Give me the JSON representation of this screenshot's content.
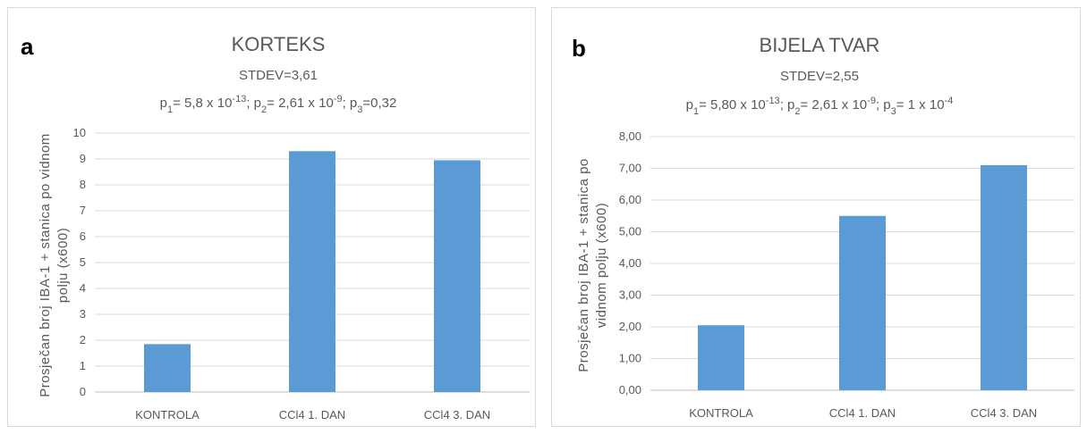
{
  "accent_color": "#5b9bd5",
  "chart_data": [
    {
      "type": "bar",
      "panel_label": "a",
      "title": "KORTEKS",
      "stdev_text": "STDEV=3,61",
      "p_values": [
        {
          "label": "p",
          "sub": "1",
          "eq": "= 5,8 x 10",
          "exp": "-13",
          "sep": ";"
        },
        {
          "label": "p",
          "sub": "2",
          "eq": "= 2,61 x 10",
          "exp": "-9",
          "sep": ";"
        },
        {
          "label": "p",
          "sub": "3",
          "eq": "=0,32",
          "exp": "",
          "sep": ""
        }
      ],
      "ylabel_lines": [
        "Prosječan broj IBA-1 + stanica po vidnom",
        "polju (x600)"
      ],
      "categories": [
        "KONTROLA",
        "CCl4 1. DAN",
        "CCl4 3. DAN"
      ],
      "values": [
        1.85,
        9.3,
        8.95
      ],
      "ylim": [
        0,
        10
      ],
      "yticks": [
        "0",
        "1",
        "2",
        "3",
        "4",
        "5",
        "6",
        "7",
        "8",
        "9",
        "10"
      ],
      "grid": true,
      "color": "#5b9bd5"
    },
    {
      "type": "bar",
      "panel_label": "b",
      "title": "BIJELA TVAR",
      "stdev_text": "STDEV=2,55",
      "p_values": [
        {
          "label": "p",
          "sub": "1",
          "eq": "= 5,80 x 10",
          "exp": "-13",
          "sep": ";"
        },
        {
          "label": "p",
          "sub": "2",
          "eq": "= 2,61 x 10",
          "exp": "-9",
          "sep": ";"
        },
        {
          "label": "p",
          "sub": "3",
          "eq": "= 1 x 10",
          "exp": "-4",
          "sep": ""
        }
      ],
      "ylabel_lines": [
        "Prosječan broj IBA-1 + stanica po",
        "vidnom polju (x600)"
      ],
      "categories": [
        "KONTROLA",
        "CCl4 1. DAN",
        "CCl4 3. DAN"
      ],
      "values": [
        2.05,
        5.5,
        7.1
      ],
      "ylim": [
        0,
        8
      ],
      "yticks": [
        "0,00",
        "1,00",
        "2,00",
        "3,00",
        "4,00",
        "5,00",
        "6,00",
        "7,00",
        "8,00"
      ],
      "grid": true,
      "color": "#5b9bd5"
    }
  ]
}
